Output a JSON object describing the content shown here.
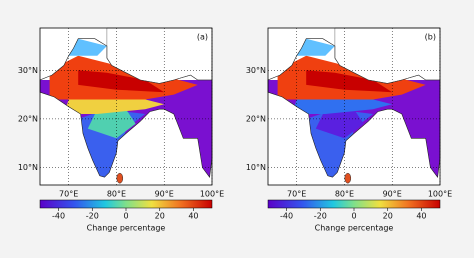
{
  "panels": [
    {
      "label": "(a)"
    },
    {
      "label": "(b)"
    }
  ],
  "map": {
    "lonlim": [
      64,
      100
    ],
    "latlim": [
      6.4,
      38.7
    ],
    "lat_ticks": [
      {
        "value": 10,
        "label": "10°N"
      },
      {
        "value": 20,
        "label": "20°N"
      },
      {
        "value": 30,
        "label": "30°N"
      }
    ],
    "lon_ticks": [
      {
        "value": 70,
        "label": "70°E"
      },
      {
        "value": 80,
        "label": "80°E"
      },
      {
        "value": 90,
        "label": "90°E"
      },
      {
        "value": 100,
        "label": "100°E"
      }
    ]
  },
  "colorbar": {
    "lim": [
      -51,
      51
    ],
    "ticks": [
      -40,
      -20,
      0,
      20,
      40
    ],
    "label": "Change percentage"
  }
}
